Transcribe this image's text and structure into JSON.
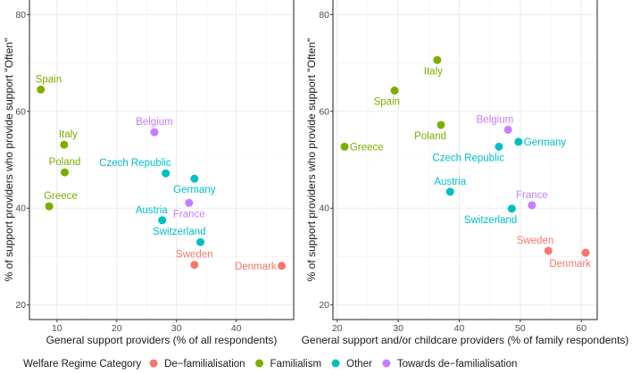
{
  "chart_data": [
    {
      "type": "scatter",
      "panel": "left",
      "xlabel": "General support providers (% of all respondents)",
      "ylabel": "% of support providers who provide support \"Often\"",
      "xlim": [
        5.4,
        49.6
      ],
      "ylim": [
        17.0,
        83.0
      ],
      "xticks": [
        10,
        20,
        30,
        40
      ],
      "yticks": [
        20,
        40,
        60,
        80
      ],
      "grid": true,
      "points": [
        {
          "label": "Spain",
          "x": 7.3,
          "y": 64.5,
          "category": "Familialism",
          "label_pos": "above-right"
        },
        {
          "label": "Italy",
          "x": 11.2,
          "y": 53.1,
          "category": "Familialism",
          "label_pos": "above-right"
        },
        {
          "label": "Poland",
          "x": 11.3,
          "y": 47.4,
          "category": "Familialism",
          "label_pos": "above"
        },
        {
          "label": "Greece",
          "x": 8.7,
          "y": 40.4,
          "category": "Familialism",
          "label_pos": "above-right"
        },
        {
          "label": "Belgium",
          "x": 26.3,
          "y": 55.7,
          "category": "Towards de-familialisation",
          "label_pos": "above"
        },
        {
          "label": "Czech Republic",
          "x": 28.2,
          "y": 47.2,
          "category": "Other",
          "label_pos": "above-left"
        },
        {
          "label": "Germany",
          "x": 33.0,
          "y": 46.1,
          "category": "Other",
          "label_pos": "below"
        },
        {
          "label": "France",
          "x": 32.1,
          "y": 41.1,
          "category": "Towards de-familialisation",
          "label_pos": "below"
        },
        {
          "label": "Austria",
          "x": 27.6,
          "y": 37.5,
          "category": "Other",
          "label_pos": "above-left"
        },
        {
          "label": "Switzerland",
          "x": 34.0,
          "y": 33.0,
          "category": "Other",
          "label_pos": "above-left"
        },
        {
          "label": "Sweden",
          "x": 33.0,
          "y": 28.3,
          "category": "De-familialisation",
          "label_pos": "above"
        },
        {
          "label": "Denmark",
          "x": 47.6,
          "y": 28.1,
          "category": "De-familialisation",
          "label_pos": "left"
        }
      ]
    },
    {
      "type": "scatter",
      "panel": "right",
      "xlabel": "General support and/or childcare providers (% of family respondents)",
      "ylabel": "% of support providers who provide support \"Often\"",
      "xlim": [
        19.3,
        62.6
      ],
      "ylim": [
        17.0,
        83.0
      ],
      "xticks": [
        20,
        30,
        40,
        50,
        60
      ],
      "yticks": [
        20,
        40,
        60,
        80
      ],
      "grid": true,
      "points": [
        {
          "label": "Italy",
          "x": 36.4,
          "y": 70.6,
          "category": "Familialism",
          "label_pos": "below-left"
        },
        {
          "label": "Spain",
          "x": 29.4,
          "y": 64.3,
          "category": "Familialism",
          "label_pos": "below-left"
        },
        {
          "label": "Poland",
          "x": 37.0,
          "y": 57.2,
          "category": "Familialism",
          "label_pos": "below-left"
        },
        {
          "label": "Greece",
          "x": 21.2,
          "y": 52.7,
          "category": "Familialism",
          "label_pos": "right"
        },
        {
          "label": "Belgium",
          "x": 48.0,
          "y": 56.2,
          "category": "Towards de-familialisation",
          "label_pos": "above-left"
        },
        {
          "label": "Czech Republic",
          "x": 46.5,
          "y": 52.7,
          "category": "Other",
          "label_pos": "below-left"
        },
        {
          "label": "Germany",
          "x": 49.7,
          "y": 53.7,
          "category": "Other",
          "label_pos": "right"
        },
        {
          "label": "Austria",
          "x": 38.5,
          "y": 43.4,
          "category": "Other",
          "label_pos": "above"
        },
        {
          "label": "France",
          "x": 51.9,
          "y": 40.6,
          "category": "Towards de-familialisation",
          "label_pos": "above"
        },
        {
          "label": "Switzerland",
          "x": 48.6,
          "y": 39.9,
          "category": "Other",
          "label_pos": "below-left"
        },
        {
          "label": "Sweden",
          "x": 54.6,
          "y": 31.2,
          "category": "De-familialisation",
          "label_pos": "above-left"
        },
        {
          "label": "Denmark",
          "x": 60.7,
          "y": 30.8,
          "category": "De-familialisation",
          "label_pos": "below-left"
        }
      ]
    }
  ],
  "legend": {
    "title": "Welfare Regime Category",
    "position": "bottom",
    "items": [
      {
        "label": "De−familialisation",
        "category": "De-familialisation",
        "color": "#F8766D"
      },
      {
        "label": "Familialism",
        "category": "Familialism",
        "color": "#7CAE00"
      },
      {
        "label": "Other",
        "category": "Other",
        "color": "#00BFC4"
      },
      {
        "label": "Towards de−familialisation",
        "category": "Towards de-familialisation",
        "color": "#C77CFF"
      }
    ]
  },
  "colors": {
    "De-familialisation": "#F8766D",
    "Familialism": "#7CAE00",
    "Other": "#00BFC4",
    "Towards de-familialisation": "#C77CFF"
  }
}
